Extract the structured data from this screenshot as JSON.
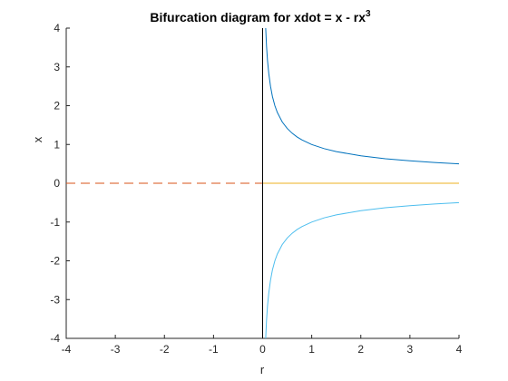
{
  "chart_data": {
    "type": "line",
    "title": "Bifurcation diagram for xdot = x - rx",
    "title_superscript": "3",
    "xlabel": "r",
    "ylabel": "x",
    "xlim": [
      -4,
      4
    ],
    "ylim": [
      -4,
      4
    ],
    "xticks": [
      -4,
      -3,
      -2,
      -1,
      0,
      1,
      2,
      3,
      4
    ],
    "yticks": [
      -4,
      -3,
      -2,
      -1,
      0,
      1,
      2,
      3,
      4
    ],
    "grid": false,
    "legend": "none",
    "series": [
      {
        "role": "positive branch x = 1/sqrt(r)",
        "style": "solid",
        "color": "#0072BD",
        "x": [
          0.0625,
          0.08,
          0.1,
          0.125,
          0.16,
          0.2,
          0.25,
          0.3,
          0.4,
          0.5,
          0.6,
          0.7,
          0.8,
          1.0,
          1.25,
          1.5,
          2.0,
          2.5,
          3.0,
          3.5,
          4.0
        ],
        "y": [
          4.0,
          3.536,
          3.162,
          2.828,
          2.5,
          2.236,
          2.0,
          1.826,
          1.581,
          1.414,
          1.291,
          1.195,
          1.118,
          1.0,
          0.894,
          0.816,
          0.707,
          0.632,
          0.577,
          0.535,
          0.5
        ]
      },
      {
        "role": "negative branch x = -1/sqrt(r)",
        "style": "solid",
        "color": "#4DBEEE",
        "x": [
          0.0625,
          0.08,
          0.1,
          0.125,
          0.16,
          0.2,
          0.25,
          0.3,
          0.4,
          0.5,
          0.6,
          0.7,
          0.8,
          1.0,
          1.25,
          1.5,
          2.0,
          2.5,
          3.0,
          3.5,
          4.0
        ],
        "y": [
          -4.0,
          -3.536,
          -3.162,
          -2.828,
          -2.5,
          -2.236,
          -2.0,
          -1.826,
          -1.581,
          -1.414,
          -1.291,
          -1.195,
          -1.118,
          -1.0,
          -0.894,
          -0.816,
          -0.707,
          -0.632,
          -0.577,
          -0.535,
          -0.5
        ]
      },
      {
        "role": "x = 0 for r > 0",
        "style": "solid",
        "color": "#EDB120",
        "x": [
          0,
          4
        ],
        "y": [
          0,
          0
        ]
      },
      {
        "role": "x = 0 for r < 0",
        "style": "dashed",
        "color": "#D95319",
        "x": [
          -4,
          0
        ],
        "y": [
          0,
          0
        ]
      },
      {
        "role": "r = 0",
        "style": "solid",
        "color": "#000000",
        "x": [
          0,
          0
        ],
        "y": [
          -4,
          4
        ]
      }
    ]
  }
}
